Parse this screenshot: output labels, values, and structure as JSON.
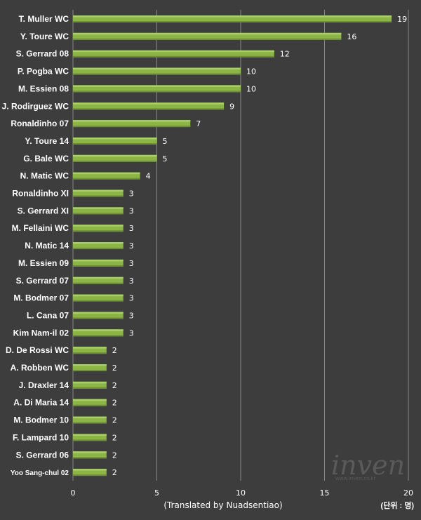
{
  "chart_data": {
    "type": "bar",
    "orientation": "horizontal",
    "categories": [
      "T. Muller WC",
      "Y. Toure WC",
      "S. Gerrard 08",
      "P. Pogba WC",
      "M. Essien 08",
      "J. Rodirguez WC",
      "Ronaldinho 07",
      "Y. Toure 14",
      "G. Bale WC",
      "N. Matic WC",
      "Ronaldinho XI",
      "S. Gerrard XI",
      "M. Fellaini WC",
      "N. Matic 14",
      "M. Essien 09",
      "S. Gerrard 07",
      "M. Bodmer 07",
      "L. Cana 07",
      "Kim Nam-il 02",
      "D. De Rossi WC",
      "A. Robben WC",
      "J. Draxler 14",
      "A. Di Maria 14",
      "M. Bodmer 10",
      "F. Lampard 10",
      "S. Gerrard 06",
      "Yoo Sang-chul 02"
    ],
    "values": [
      19,
      16,
      12,
      10,
      10,
      9,
      7,
      5,
      5,
      4,
      3,
      3,
      3,
      3,
      3,
      3,
      3,
      3,
      3,
      2,
      2,
      2,
      2,
      2,
      2,
      2,
      2
    ],
    "xlim": [
      0,
      20
    ],
    "xticks": [
      "0",
      "5",
      "10",
      "15",
      "20"
    ],
    "xlabel": "(Translated by Nuadsentiao)",
    "unit_label": "(단위 : 명)",
    "grid": true,
    "bar_color": "#8db545",
    "background_color": "#3d3d3d",
    "grid_color": "#888888"
  },
  "watermark": {
    "logo": "inven",
    "url": "www.inven.co.kr"
  }
}
